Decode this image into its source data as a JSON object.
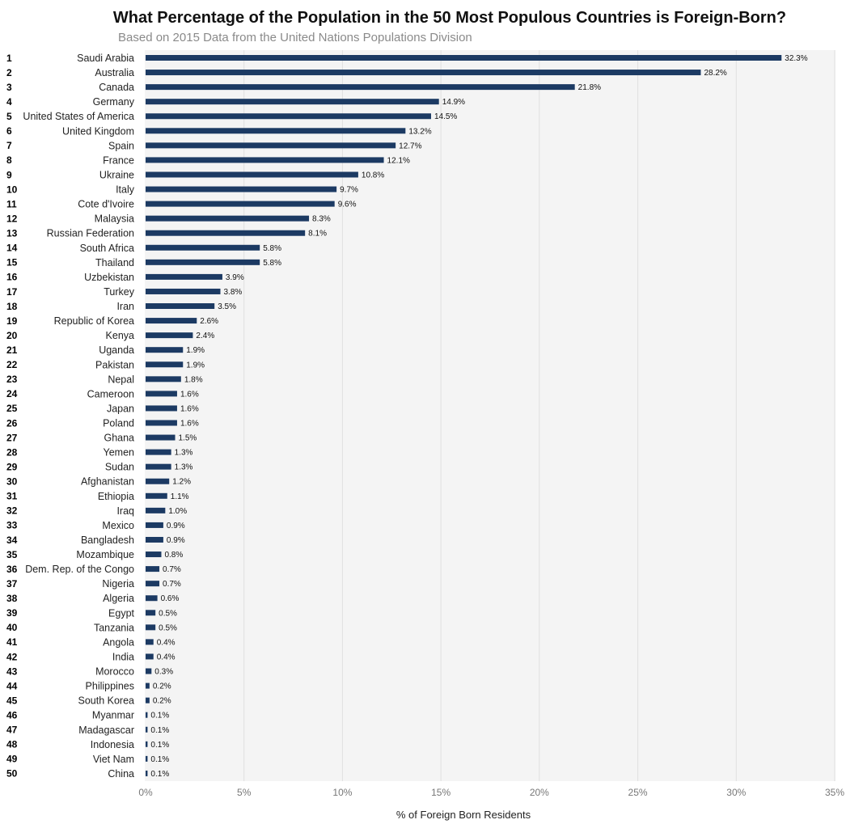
{
  "chart_data": {
    "type": "bar",
    "orientation": "horizontal",
    "title": "What Percentage of the Population in the 50 Most Populous Countries is Foreign-Born?",
    "subtitle": "Based on 2015 Data from the United Nations Populations Division",
    "xlabel": "% of Foreign Born Residents",
    "xlim": [
      0,
      35
    ],
    "x_ticks": [
      0,
      5,
      10,
      15,
      20,
      25,
      30,
      35
    ],
    "x_tick_labels": [
      "0%",
      "5%",
      "10%",
      "15%",
      "20%",
      "25%",
      "30%",
      "35%"
    ],
    "grid": "vertical",
    "bar_color": "#1c3a63",
    "plot_background": "#f4f4f4",
    "ranks": [
      "1",
      "2",
      "3",
      "4",
      "5",
      "6",
      "7",
      "8",
      "9",
      "10",
      "11",
      "12",
      "13",
      "14",
      "15",
      "16",
      "17",
      "18",
      "19",
      "20",
      "21",
      "22",
      "23",
      "24",
      "25",
      "26",
      "27",
      "28",
      "29",
      "30",
      "31",
      "32",
      "33",
      "34",
      "35",
      "36",
      "37",
      "38",
      "39",
      "40",
      "41",
      "42",
      "43",
      "44",
      "45",
      "46",
      "47",
      "48",
      "49",
      "50"
    ],
    "categories": [
      "Saudi Arabia",
      "Australia",
      "Canada",
      "Germany",
      "United States of America",
      "United Kingdom",
      "Spain",
      "France",
      "Ukraine",
      "Italy",
      "Cote d'Ivoire",
      "Malaysia",
      "Russian Federation",
      "South Africa",
      "Thailand",
      "Uzbekistan",
      "Turkey",
      "Iran",
      "Republic of Korea",
      "Kenya",
      "Uganda",
      "Pakistan",
      "Nepal",
      "Cameroon",
      "Japan",
      "Poland",
      "Ghana",
      "Yemen",
      "Sudan",
      "Afghanistan",
      "Ethiopia",
      "Iraq",
      "Mexico",
      "Bangladesh",
      "Mozambique",
      "Dem. Rep. of the Congo",
      "Nigeria",
      "Algeria",
      "Egypt",
      "Tanzania",
      "Angola",
      "India",
      "Morocco",
      "Philippines",
      "South Korea",
      "Myanmar",
      "Madagascar",
      "Indonesia",
      "Viet Nam",
      "China"
    ],
    "values": [
      32.3,
      28.2,
      21.8,
      14.9,
      14.5,
      13.2,
      12.7,
      12.1,
      10.8,
      9.7,
      9.6,
      8.3,
      8.1,
      5.8,
      5.8,
      3.9,
      3.8,
      3.5,
      2.6,
      2.4,
      1.9,
      1.9,
      1.8,
      1.6,
      1.6,
      1.6,
      1.5,
      1.3,
      1.3,
      1.2,
      1.1,
      1.0,
      0.9,
      0.9,
      0.8,
      0.7,
      0.7,
      0.6,
      0.5,
      0.5,
      0.4,
      0.4,
      0.3,
      0.2,
      0.2,
      0.1,
      0.1,
      0.1,
      0.1,
      0.1
    ],
    "value_labels": [
      "32.3%",
      "28.2%",
      "21.8%",
      "14.9%",
      "14.5%",
      "13.2%",
      "12.7%",
      "12.1%",
      "10.8%",
      "9.7%",
      "9.6%",
      "8.3%",
      "8.1%",
      "5.8%",
      "5.8%",
      "3.9%",
      "3.8%",
      "3.5%",
      "2.6%",
      "2.4%",
      "1.9%",
      "1.9%",
      "1.8%",
      "1.6%",
      "1.6%",
      "1.6%",
      "1.5%",
      "1.3%",
      "1.3%",
      "1.2%",
      "1.1%",
      "1.0%",
      "0.9%",
      "0.9%",
      "0.8%",
      "0.7%",
      "0.7%",
      "0.6%",
      "0.5%",
      "0.5%",
      "0.4%",
      "0.4%",
      "0.3%",
      "0.2%",
      "0.2%",
      "0.1%",
      "0.1%",
      "0.1%",
      "0.1%",
      "0.1%"
    ]
  }
}
